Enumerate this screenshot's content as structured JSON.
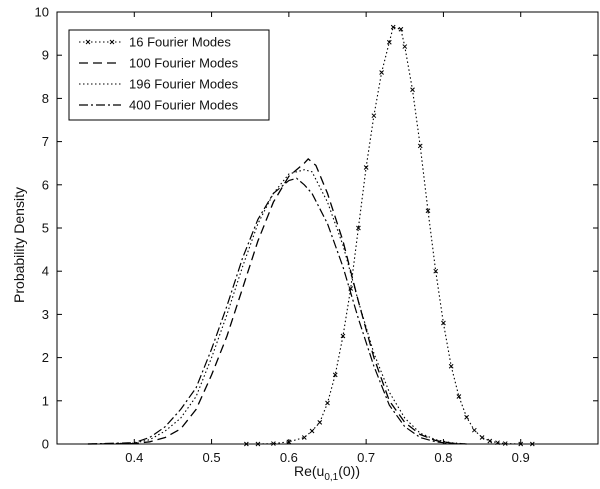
{
  "chart_data": {
    "type": "line",
    "title": "",
    "xlabel": "Re(u₀,₁(0))",
    "xlabel_parts": {
      "prefix": "Re(u",
      "subscript": "0,1",
      "suffix": "(0))"
    },
    "ylabel": "Probability Density",
    "xlim": [
      0.3,
      1.0
    ],
    "ylim": [
      0,
      10
    ],
    "xticks": [
      "0.4",
      "0.5",
      "0.6",
      "0.7",
      "0.8",
      "0.9"
    ],
    "xtick_values": [
      0.4,
      0.5,
      0.6,
      0.7,
      0.8,
      0.9
    ],
    "yticks": [
      "0",
      "1",
      "2",
      "3",
      "4",
      "5",
      "6",
      "7",
      "8",
      "9",
      "10"
    ],
    "ytick_values": [
      0,
      1,
      2,
      3,
      4,
      5,
      6,
      7,
      8,
      9,
      10
    ],
    "grid": false,
    "legend_position": "top-left",
    "series": [
      {
        "name": "16 Fourier Modes",
        "style": "dotted-x",
        "x": [
          0.545,
          0.56,
          0.58,
          0.6,
          0.62,
          0.63,
          0.64,
          0.65,
          0.66,
          0.67,
          0.68,
          0.69,
          0.7,
          0.71,
          0.72,
          0.73,
          0.735,
          0.745,
          0.75,
          0.76,
          0.77,
          0.78,
          0.79,
          0.8,
          0.81,
          0.82,
          0.83,
          0.84,
          0.85,
          0.86,
          0.87,
          0.88,
          0.9,
          0.915
        ],
        "y": [
          0.0,
          0.0,
          0.01,
          0.05,
          0.15,
          0.3,
          0.5,
          0.95,
          1.6,
          2.5,
          3.6,
          5.0,
          6.4,
          7.6,
          8.6,
          9.3,
          9.65,
          9.6,
          9.2,
          8.2,
          6.9,
          5.4,
          4.0,
          2.8,
          1.8,
          1.1,
          0.62,
          0.32,
          0.15,
          0.07,
          0.03,
          0.01,
          0.0,
          0.0
        ]
      },
      {
        "name": "100 Fourier Modes",
        "style": "dashed",
        "x": [
          0.34,
          0.4,
          0.42,
          0.44,
          0.46,
          0.48,
          0.5,
          0.52,
          0.54,
          0.56,
          0.58,
          0.6,
          0.62,
          0.625,
          0.635,
          0.65,
          0.67,
          0.69,
          0.71,
          0.73,
          0.75,
          0.77,
          0.79,
          0.81,
          0.83
        ],
        "y": [
          0.0,
          0.01,
          0.05,
          0.15,
          0.35,
          0.8,
          1.6,
          2.5,
          3.6,
          4.7,
          5.6,
          6.2,
          6.5,
          6.6,
          6.45,
          5.8,
          4.7,
          3.3,
          2.0,
          1.0,
          0.5,
          0.22,
          0.08,
          0.02,
          0.0
        ]
      },
      {
        "name": "196 Fourier Modes",
        "style": "dotted",
        "x": [
          0.34,
          0.4,
          0.42,
          0.44,
          0.46,
          0.48,
          0.5,
          0.52,
          0.54,
          0.56,
          0.58,
          0.6,
          0.62,
          0.63,
          0.65,
          0.67,
          0.69,
          0.71,
          0.73,
          0.75,
          0.77,
          0.79,
          0.81,
          0.83
        ],
        "y": [
          0.0,
          0.02,
          0.1,
          0.3,
          0.6,
          1.1,
          2.0,
          3.0,
          4.1,
          5.1,
          5.8,
          6.25,
          6.35,
          6.3,
          5.6,
          4.6,
          3.3,
          2.1,
          1.2,
          0.6,
          0.25,
          0.1,
          0.03,
          0.0
        ]
      },
      {
        "name": "400 Fourier Modes",
        "style": "dash-dot",
        "x": [
          0.34,
          0.4,
          0.42,
          0.44,
          0.46,
          0.48,
          0.5,
          0.52,
          0.54,
          0.56,
          0.58,
          0.6,
          0.61,
          0.62,
          0.63,
          0.65,
          0.67,
          0.69,
          0.71,
          0.73,
          0.75,
          0.77,
          0.79,
          0.81,
          0.83
        ],
        "y": [
          0.0,
          0.03,
          0.15,
          0.4,
          0.8,
          1.3,
          2.2,
          3.2,
          4.3,
          5.2,
          5.8,
          6.1,
          6.15,
          6.0,
          5.8,
          5.1,
          4.1,
          2.9,
          1.8,
          0.9,
          0.4,
          0.15,
          0.05,
          0.01,
          0.0
        ]
      }
    ]
  }
}
